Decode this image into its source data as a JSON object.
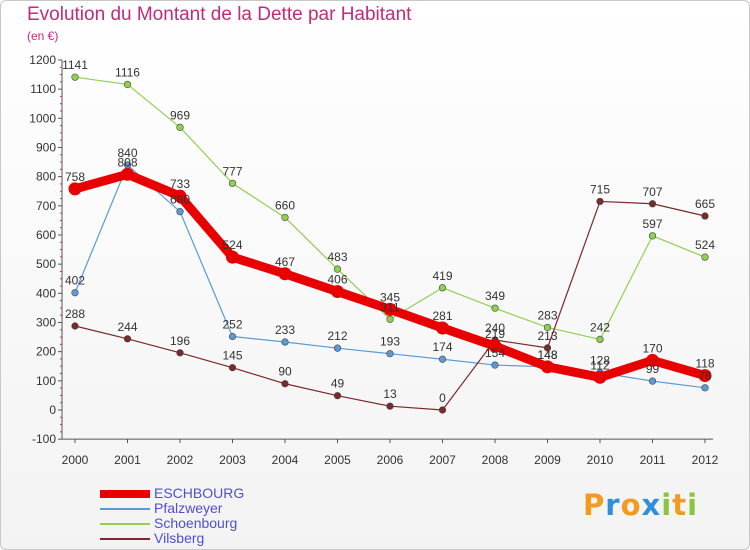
{
  "chart_data": {
    "type": "line",
    "title": "Evolution du Montant de la Dette par Habitant",
    "unit": "(en €)",
    "xlabel": "",
    "ylabel": "",
    "x": [
      "2000",
      "2001",
      "2002",
      "2003",
      "2004",
      "2005",
      "2006",
      "2007",
      "2008",
      "2009",
      "2010",
      "2011",
      "2012"
    ],
    "ylim": [
      -100,
      1200
    ],
    "yticks": [
      -100,
      0,
      100,
      200,
      300,
      400,
      500,
      600,
      700,
      800,
      900,
      1000,
      1100,
      1200
    ],
    "series": [
      {
        "name": "ESCHBOURG",
        "color": "#e80000",
        "values": [
          758,
          808,
          733,
          524,
          467,
          406,
          345,
          281,
          219,
          148,
          112,
          170,
          118
        ]
      },
      {
        "name": "Pfalzweyer",
        "color": "#5b9bd5",
        "values": [
          402,
          840,
          680,
          252,
          233,
          212,
          193,
          174,
          154,
          148,
          128,
          99,
          76
        ]
      },
      {
        "name": "Schoenbourg",
        "color": "#8fd14f",
        "values": [
          1141,
          1116,
          969,
          777,
          660,
          483,
          311,
          419,
          349,
          283,
          242,
          597,
          524
        ]
      },
      {
        "name": "Vilsberg",
        "color": "#7a2a2a",
        "values": [
          288,
          244,
          196,
          145,
          90,
          49,
          13,
          0,
          240,
          213,
          715,
          707,
          665
        ]
      }
    ]
  },
  "logo": {
    "letters": [
      "P",
      "r",
      "o",
      "x",
      "i",
      "t",
      "i"
    ],
    "colors": [
      "#f29b1e",
      "#2f8fd8",
      "#f29b1e",
      "#2f8fd8",
      "#8bc43f",
      "#f29b1e",
      "#8bc43f"
    ]
  }
}
